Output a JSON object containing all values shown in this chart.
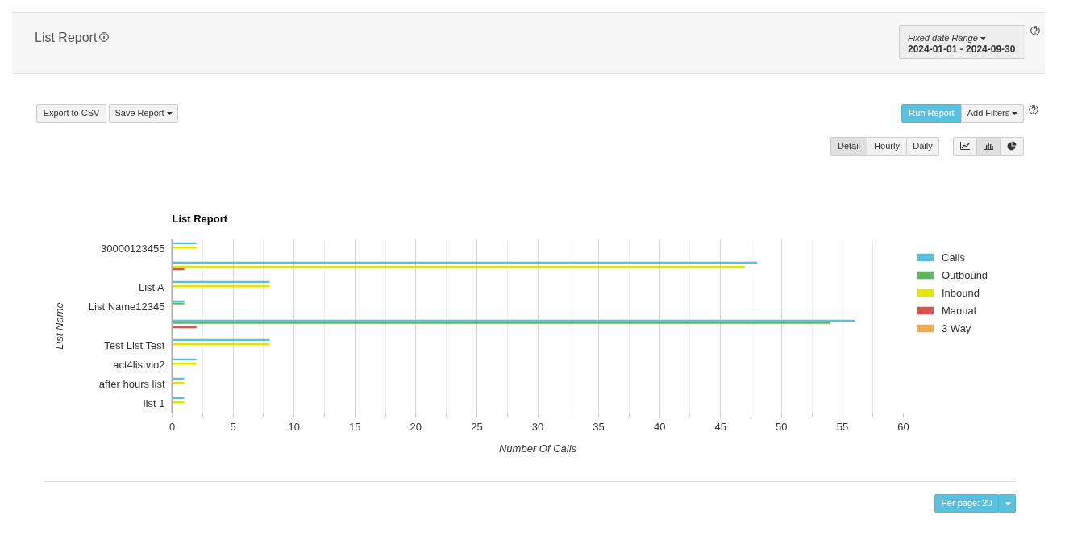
{
  "chart_data": {
    "type": "bar",
    "orientation": "horizontal",
    "title": "List Report",
    "xlabel": "Number Of Calls",
    "ylabel": "List Name",
    "categories": [
      "30000123455",
      null,
      "List A",
      "List Name12345",
      null,
      "Test List Test",
      "act4listvio2",
      "after hours list",
      "list 1"
    ],
    "series": [
      {
        "name": "Calls",
        "color": "#5bc0de",
        "values": [
          2,
          48,
          8,
          1,
          56,
          8,
          2,
          1,
          1
        ]
      },
      {
        "name": "Outbound",
        "color": "#5cb85c",
        "values": [
          0,
          0,
          0,
          1,
          54,
          0,
          0,
          0,
          0
        ]
      },
      {
        "name": "Inbound",
        "color": "#e5e500",
        "values": [
          2,
          47,
          8,
          0,
          0,
          8,
          2,
          1,
          1
        ]
      },
      {
        "name": "Manual",
        "color": "#d9534f",
        "values": [
          0,
          1,
          0,
          0,
          2,
          0,
          0,
          0,
          0
        ]
      },
      {
        "name": "3 Way",
        "color": "#f0ad4e",
        "values": [
          0,
          0,
          0,
          0,
          0,
          0,
          0,
          0,
          0
        ]
      }
    ],
    "xlim": [
      0,
      60
    ],
    "xticks": [
      0,
      {
        "value": 2.5,
        "label": null
      },
      5,
      {
        "value": 7.5,
        "label": null
      },
      10,
      {
        "value": 12.5,
        "label": null
      },
      15,
      {
        "value": 17.5,
        "label": null
      },
      20,
      {
        "value": 22.5,
        "label": null
      },
      25,
      {
        "value": 27.5,
        "label": null
      },
      30,
      {
        "value": 32.5,
        "label": null
      },
      35,
      {
        "value": 37.5,
        "label": null
      },
      40,
      {
        "value": 42.5,
        "label": null
      },
      45,
      {
        "value": 47.5,
        "label": null
      },
      50,
      {
        "value": 52.5,
        "label": null
      },
      55,
      {
        "value": 57.5,
        "label": null
      },
      60
    ],
    "grid": "x",
    "legend": "right",
    "annotations": [
      "List Report",
      "Fixed date Range",
      "2024-01-01 - 2024-09-30",
      "Export to CSV",
      "Save Report",
      "Run Report",
      "Add Filters",
      "Detail",
      "Hourly",
      "Daily",
      "Per page: 20"
    ]
  }
}
